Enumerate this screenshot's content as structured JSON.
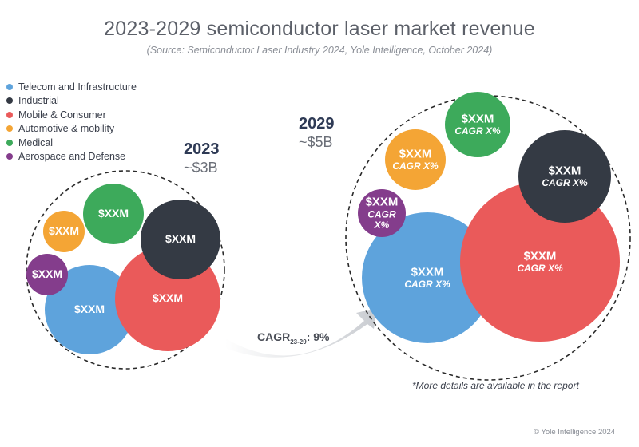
{
  "title": "2023-2029 semiconductor laser market revenue",
  "subtitle": "(Source: Semiconductor Laser Industry 2024, Yole Intelligence, October 2024)",
  "footnote": "*More details are available in the report",
  "copyright": "© Yole Intelligence 2024",
  "arrow": {
    "label": "CAGR",
    "sub": "23-29",
    "value": ": 9%"
  },
  "chart_data": {
    "type": "bubble",
    "legend_placement": "top-left",
    "segments": [
      {
        "name": "Telecom and Infrastructure",
        "color": "#5ea3dc"
      },
      {
        "name": "Industrial",
        "color": "#343a44"
      },
      {
        "name": "Mobile & Consumer",
        "color": "#ea5a5a"
      },
      {
        "name": "Automotive & mobility",
        "color": "#f4a535"
      },
      {
        "name": "Medical",
        "color": "#3daa5b"
      },
      {
        "name": "Aerospace and Defense",
        "color": "#843d8c"
      }
    ],
    "groups": [
      {
        "year": "2023",
        "total": "~$3B",
        "bubbles": [
          {
            "segment": "Telecom and Infrastructure",
            "value_label": "$XXM",
            "cagr_label": ""
          },
          {
            "segment": "Mobile & Consumer",
            "value_label": "$XXM",
            "cagr_label": ""
          },
          {
            "segment": "Industrial",
            "value_label": "$XXM",
            "cagr_label": ""
          },
          {
            "segment": "Medical",
            "value_label": "$XXM",
            "cagr_label": ""
          },
          {
            "segment": "Automotive & mobility",
            "value_label": "$XXM",
            "cagr_label": ""
          },
          {
            "segment": "Aerospace and Defense",
            "value_label": "$XXM",
            "cagr_label": ""
          }
        ]
      },
      {
        "year": "2029",
        "total": "~$5B",
        "bubbles": [
          {
            "segment": "Telecom and Infrastructure",
            "value_label": "$XXM",
            "cagr_label": "CAGR X%"
          },
          {
            "segment": "Mobile & Consumer",
            "value_label": "$XXM",
            "cagr_label": "CAGR X%"
          },
          {
            "segment": "Industrial",
            "value_label": "$XXM",
            "cagr_label": "CAGR X%"
          },
          {
            "segment": "Medical",
            "value_label": "$XXM",
            "cagr_label": "CAGR X%"
          },
          {
            "segment": "Automotive & mobility",
            "value_label": "$XXM",
            "cagr_label": "CAGR X%"
          },
          {
            "segment": "Aerospace and Defense",
            "value_label": "$XXM",
            "cagr_label": "CAGR\nX%"
          }
        ]
      }
    ]
  }
}
